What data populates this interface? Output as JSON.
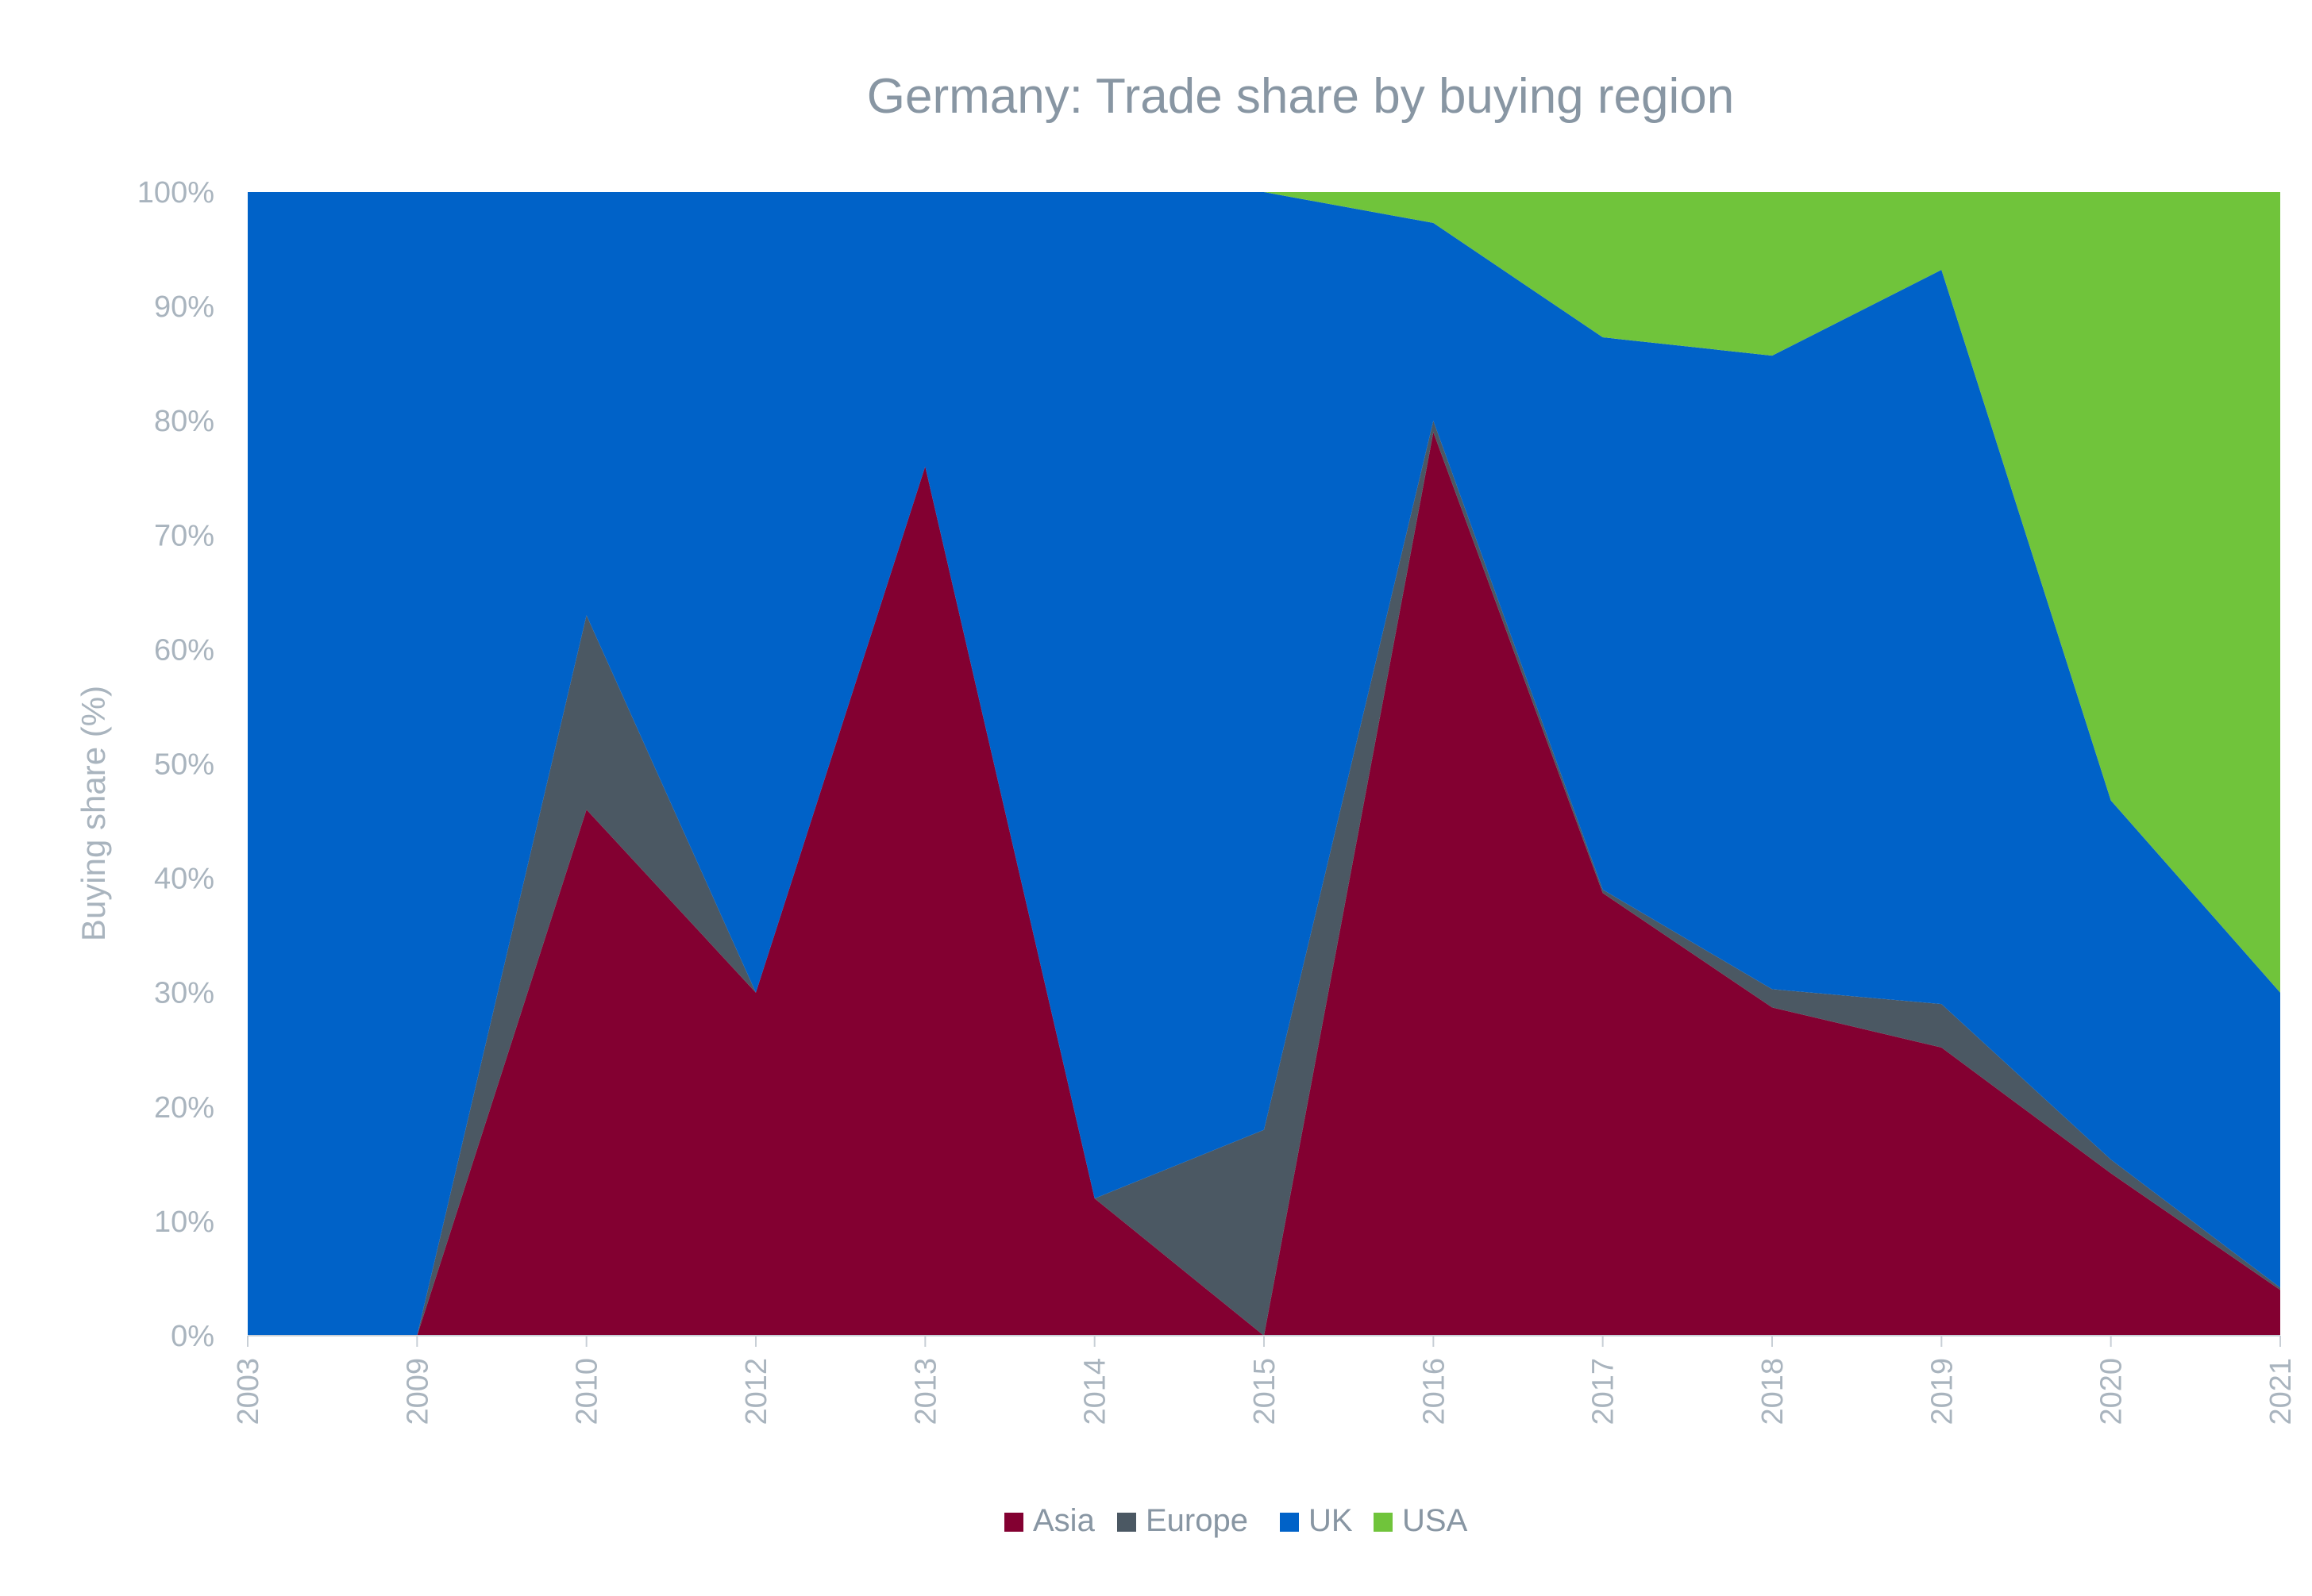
{
  "chart_data": {
    "type": "area",
    "stacked": true,
    "normalized": true,
    "title": "Germany: Trade share by buying region",
    "ylabel": "Buying share (%)",
    "xlabel": "",
    "ylim": [
      0,
      100
    ],
    "yticks": [
      "0%",
      "10%",
      "20%",
      "30%",
      "40%",
      "50%",
      "60%",
      "70%",
      "80%",
      "90%",
      "100%"
    ],
    "categories": [
      "2003",
      "2009",
      "2010",
      "2012",
      "2013",
      "2014",
      "2015",
      "2016",
      "2017",
      "2018",
      "2019",
      "2020",
      "2021"
    ],
    "series": [
      {
        "name": "Asia",
        "color": "#830031",
        "values": [
          0,
          0,
          46,
          30,
          76,
          12,
          0,
          79,
          38.7,
          28.7,
          25.2,
          14.2,
          4
        ]
      },
      {
        "name": "Europe",
        "color": "#4b5863",
        "values": [
          0,
          0,
          17,
          0,
          0,
          0,
          18,
          1,
          0.3,
          1.6,
          3.8,
          1.2,
          0.2
        ]
      },
      {
        "name": "UK",
        "color": "#0062c8",
        "values": [
          100,
          100,
          37,
          70,
          24,
          88,
          82,
          17.3,
          48.3,
          55.4,
          64.2,
          31.4,
          25.8
        ]
      },
      {
        "name": "USA",
        "color": "#70c43b",
        "values": [
          0,
          0,
          0,
          0,
          0,
          0,
          0,
          2.7,
          12.7,
          14.3,
          6.8,
          53.2,
          70
        ]
      }
    ],
    "grid": false,
    "legend_position": "bottom-center"
  }
}
